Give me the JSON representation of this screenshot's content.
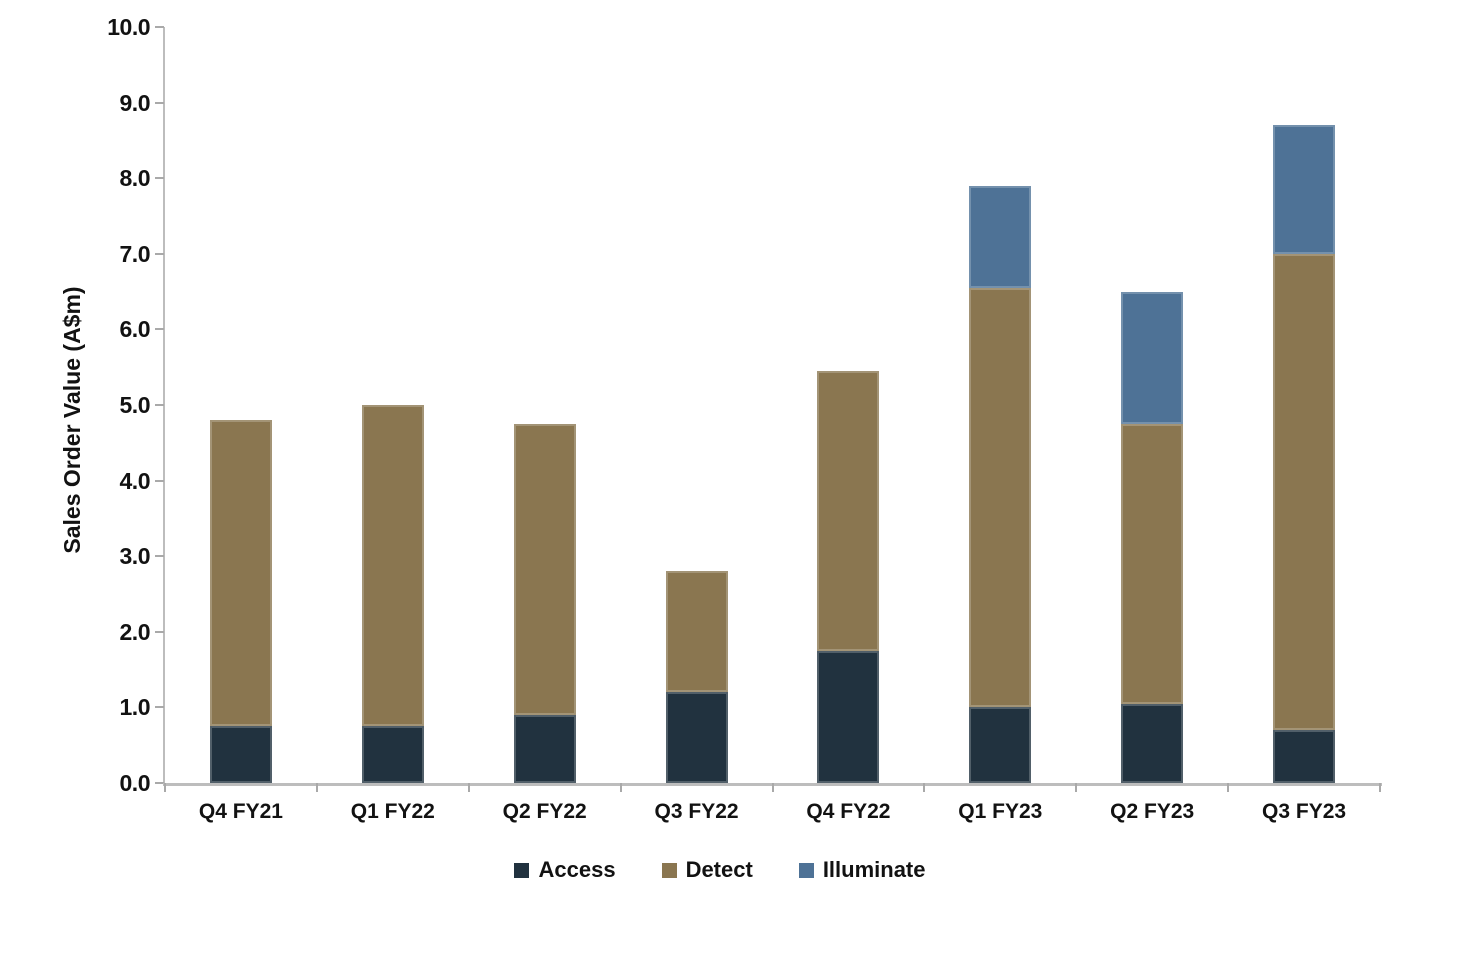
{
  "chart_data": {
    "type": "bar",
    "stacked": true,
    "title": "",
    "xlabel": "",
    "ylabel": "Sales Order Value (A$m)",
    "ylim": [
      0,
      10
    ],
    "ytick_step": 1.0,
    "ytick_decimals": 1,
    "grid": false,
    "legend_position": "bottom",
    "categories": [
      "Q4 FY21",
      "Q1 FY22",
      "Q2 FY22",
      "Q3 FY22",
      "Q4 FY22",
      "Q1 FY23",
      "Q2 FY23",
      "Q3 FY23"
    ],
    "series": [
      {
        "name": "Access",
        "color": "#21323F",
        "values": [
          0.75,
          0.75,
          0.9,
          1.2,
          1.75,
          1.0,
          1.05,
          0.7
        ]
      },
      {
        "name": "Detect",
        "color": "#8A7650",
        "values": [
          4.05,
          4.25,
          3.85,
          1.6,
          3.7,
          5.55,
          3.7,
          6.3
        ]
      },
      {
        "name": "Illuminate",
        "color": "#4E7296",
        "values": [
          0,
          0,
          0,
          0,
          0,
          1.35,
          1.75,
          1.7
        ]
      }
    ],
    "stack_totals": [
      4.8,
      5.0,
      4.75,
      2.8,
      5.45,
      7.9,
      6.5,
      8.7
    ],
    "axis_color": "#bdbdbd",
    "tick_color": "#a9a9a9",
    "text_color": "#121212"
  }
}
